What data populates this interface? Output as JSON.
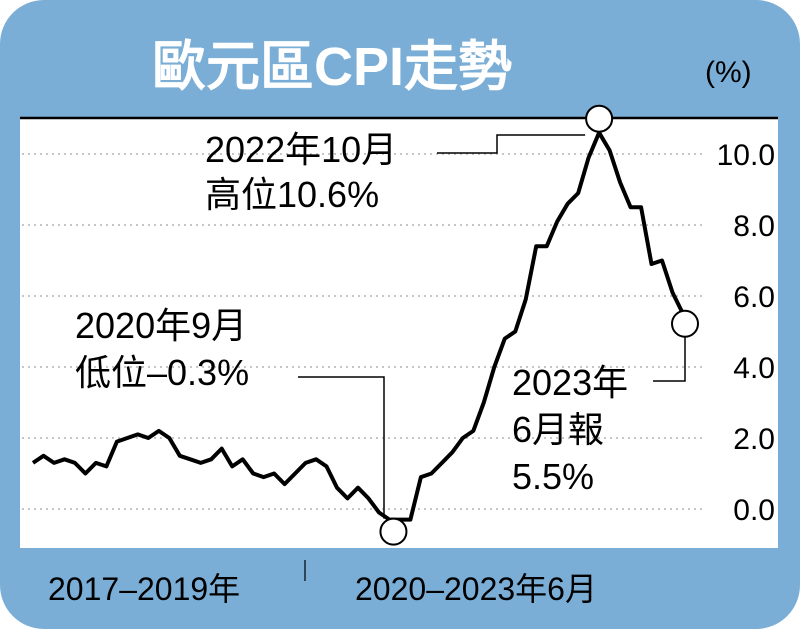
{
  "chart_data": {
    "type": "line",
    "title": "歐元區CPI走勢",
    "unit_label": "(%)",
    "ylim": [
      -0.9,
      11.5
    ],
    "yticks": [
      0.0,
      2.0,
      4.0,
      6.0,
      8.0,
      10.0
    ],
    "ytick_labels": [
      "0.0",
      "2.0",
      "4.0",
      "6.0",
      "8.0",
      "10.0"
    ],
    "grid": "horizontal dotted",
    "xaxis_segments": [
      "2017–2019年",
      "2020–2023年6月"
    ],
    "series": [
      {
        "values": [
          1.3,
          1.5,
          1.3,
          1.4,
          1.3,
          1.0,
          1.3,
          1.2,
          1.9,
          2.0,
          2.1,
          2.0,
          2.2,
          2.0,
          1.5,
          1.4,
          1.3,
          1.4,
          1.7,
          1.2,
          1.4,
          1.0,
          0.9,
          1.0,
          0.7,
          1.0,
          1.3,
          1.4,
          1.2,
          0.6,
          0.3,
          0.6,
          0.3,
          -0.1,
          -0.3,
          -0.3,
          -0.3,
          0.9,
          1.0,
          1.3,
          1.6,
          2.0,
          2.2,
          3.0,
          4.0,
          4.8,
          5.0,
          5.9,
          7.4,
          7.4,
          8.1,
          8.6,
          8.9,
          9.9,
          10.6,
          10.1,
          9.2,
          8.5,
          8.5,
          6.9,
          7.0,
          6.1,
          5.5
        ]
      }
    ],
    "annotations": [
      {
        "lines": [
          "2022年10月",
          "高位10.6%"
        ],
        "index": 54,
        "value": 10.6
      },
      {
        "lines": [
          "2020年9月",
          "低位–0.3%"
        ],
        "index": 34,
        "value": -0.3
      },
      {
        "lines": [
          "2023年",
          "6月報",
          "5.5%"
        ],
        "index": 62,
        "value": 5.5
      }
    ]
  },
  "colors": {
    "frame": "#7aaed6",
    "panel": "#ffffff",
    "line": "#000000",
    "title_text": "#ffffff",
    "grid": "#b3b3b3"
  }
}
